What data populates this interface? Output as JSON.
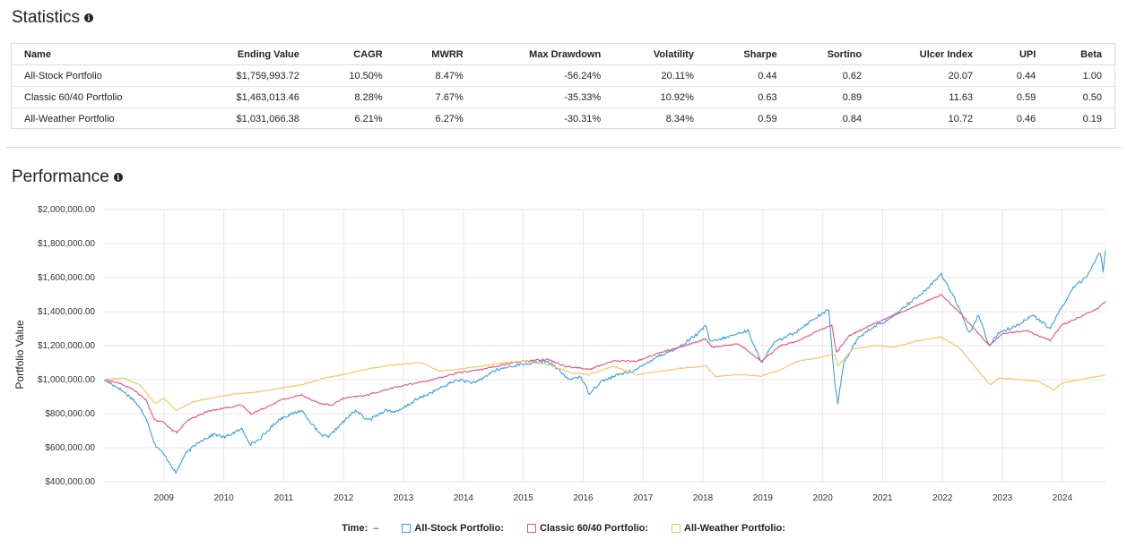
{
  "statistics": {
    "title": "Statistics",
    "columns": [
      "Name",
      "Ending Value",
      "CAGR",
      "MWRR",
      "Max Drawdown",
      "Volatility",
      "Sharpe",
      "Sortino",
      "Ulcer Index",
      "UPI",
      "Beta"
    ],
    "rows": [
      {
        "name": "All-Stock Portfolio",
        "ending_value": "$1,759,993.72",
        "cagr": "10.50%",
        "mwrr": "8.47%",
        "max_drawdown": "-56.24%",
        "volatility": "20.11%",
        "sharpe": "0.44",
        "sortino": "0.62",
        "ulcer_index": "20.07",
        "upi": "0.44",
        "beta": "1.00"
      },
      {
        "name": "Classic 60/40 Portfolio",
        "ending_value": "$1,463,013.46",
        "cagr": "8.28%",
        "mwrr": "7.67%",
        "max_drawdown": "-35.33%",
        "volatility": "10.92%",
        "sharpe": "0.63",
        "sortino": "0.89",
        "ulcer_index": "11.63",
        "upi": "0.59",
        "beta": "0.50"
      },
      {
        "name": "All-Weather Portfolio",
        "ending_value": "$1,031,066.38",
        "cagr": "6.21%",
        "mwrr": "6.27%",
        "max_drawdown": "-30.31%",
        "volatility": "8.34%",
        "sharpe": "0.59",
        "sortino": "0.84",
        "ulcer_index": "10.72",
        "upi": "0.46",
        "beta": "0.19"
      }
    ]
  },
  "performance": {
    "title": "Performance",
    "legend": {
      "time_label": "Time:",
      "time_value": "–"
    }
  },
  "chart_data": {
    "type": "line",
    "title": "Performance",
    "xlabel": "",
    "ylabel": "Portfolio Value",
    "xlim": [
      2008.0,
      2024.72
    ],
    "ylim": [
      400000,
      2000000
    ],
    "x_ticks": [
      2009,
      2010,
      2011,
      2012,
      2013,
      2014,
      2015,
      2016,
      2017,
      2018,
      2019,
      2020,
      2021,
      2022,
      2023,
      2024
    ],
    "y_ticks": [
      {
        "value": 400000,
        "label": "$400,000.00"
      },
      {
        "value": 600000,
        "label": "$600,000.00"
      },
      {
        "value": 800000,
        "label": "$800,000.00"
      },
      {
        "value": 1000000,
        "label": "$1,000,000.00"
      },
      {
        "value": 1200000,
        "label": "$1,200,000.00"
      },
      {
        "value": 1400000,
        "label": "$1,400,000.00"
      },
      {
        "value": 1600000,
        "label": "$1,600,000.00"
      },
      {
        "value": 1800000,
        "label": "$1,800,000.00"
      },
      {
        "value": 2000000,
        "label": "$2,000,000.00"
      }
    ],
    "grid": true,
    "legend_position": "bottom",
    "series": [
      {
        "name": "All-Stock Portfolio",
        "legend_label": "All-Stock Portfolio:",
        "color": "#3a9fdf",
        "points": [
          [
            2008.0,
            1000000
          ],
          [
            2008.25,
            950000
          ],
          [
            2008.5,
            880000
          ],
          [
            2008.7,
            780000
          ],
          [
            2008.85,
            620000
          ],
          [
            2009.0,
            560000
          ],
          [
            2009.12,
            500000
          ],
          [
            2009.2,
            450000
          ],
          [
            2009.35,
            560000
          ],
          [
            2009.6,
            640000
          ],
          [
            2009.85,
            680000
          ],
          [
            2010.0,
            660000
          ],
          [
            2010.3,
            710000
          ],
          [
            2010.45,
            620000
          ],
          [
            2010.6,
            650000
          ],
          [
            2010.9,
            760000
          ],
          [
            2011.0,
            780000
          ],
          [
            2011.3,
            820000
          ],
          [
            2011.6,
            680000
          ],
          [
            2011.75,
            660000
          ],
          [
            2011.9,
            720000
          ],
          [
            2012.2,
            820000
          ],
          [
            2012.4,
            760000
          ],
          [
            2012.7,
            820000
          ],
          [
            2012.9,
            810000
          ],
          [
            2013.2,
            880000
          ],
          [
            2013.5,
            930000
          ],
          [
            2013.9,
            1000000
          ],
          [
            2014.2,
            980000
          ],
          [
            2014.5,
            1050000
          ],
          [
            2014.8,
            1080000
          ],
          [
            2015.0,
            1090000
          ],
          [
            2015.4,
            1110000
          ],
          [
            2015.62,
            1050000
          ],
          [
            2015.75,
            1000000
          ],
          [
            2015.95,
            1020000
          ],
          [
            2016.1,
            920000
          ],
          [
            2016.3,
            990000
          ],
          [
            2016.6,
            1030000
          ],
          [
            2016.9,
            1060000
          ],
          [
            2017.2,
            1130000
          ],
          [
            2017.6,
            1190000
          ],
          [
            2017.95,
            1280000
          ],
          [
            2018.05,
            1320000
          ],
          [
            2018.12,
            1220000
          ],
          [
            2018.5,
            1260000
          ],
          [
            2018.75,
            1290000
          ],
          [
            2018.97,
            1100000
          ],
          [
            2019.2,
            1220000
          ],
          [
            2019.5,
            1270000
          ],
          [
            2019.9,
            1370000
          ],
          [
            2020.1,
            1410000
          ],
          [
            2020.2,
            980000
          ],
          [
            2020.25,
            860000
          ],
          [
            2020.35,
            1100000
          ],
          [
            2020.6,
            1250000
          ],
          [
            2020.9,
            1320000
          ],
          [
            2021.1,
            1350000
          ],
          [
            2021.4,
            1440000
          ],
          [
            2021.7,
            1520000
          ],
          [
            2021.98,
            1620000
          ],
          [
            2022.2,
            1480000
          ],
          [
            2022.45,
            1270000
          ],
          [
            2022.6,
            1380000
          ],
          [
            2022.78,
            1200000
          ],
          [
            2022.95,
            1280000
          ],
          [
            2023.2,
            1310000
          ],
          [
            2023.5,
            1380000
          ],
          [
            2023.8,
            1300000
          ],
          [
            2023.98,
            1420000
          ],
          [
            2024.2,
            1550000
          ],
          [
            2024.4,
            1600000
          ],
          [
            2024.55,
            1700000
          ],
          [
            2024.63,
            1750000
          ],
          [
            2024.68,
            1640000
          ],
          [
            2024.72,
            1760000
          ]
        ]
      },
      {
        "name": "Classic 60/40 Portfolio",
        "legend_label": "Classic 60/40 Portfolio:",
        "color": "#e8527a",
        "points": [
          [
            2008.0,
            1000000
          ],
          [
            2008.25,
            980000
          ],
          [
            2008.5,
            940000
          ],
          [
            2008.7,
            880000
          ],
          [
            2008.85,
            760000
          ],
          [
            2009.0,
            750000
          ],
          [
            2009.15,
            700000
          ],
          [
            2009.22,
            690000
          ],
          [
            2009.4,
            760000
          ],
          [
            2009.7,
            810000
          ],
          [
            2009.95,
            830000
          ],
          [
            2010.3,
            850000
          ],
          [
            2010.45,
            800000
          ],
          [
            2010.6,
            820000
          ],
          [
            2010.95,
            880000
          ],
          [
            2011.3,
            910000
          ],
          [
            2011.6,
            860000
          ],
          [
            2011.8,
            850000
          ],
          [
            2012.0,
            890000
          ],
          [
            2012.4,
            910000
          ],
          [
            2012.8,
            950000
          ],
          [
            2013.2,
            980000
          ],
          [
            2013.5,
            1000000
          ],
          [
            2013.9,
            1040000
          ],
          [
            2014.3,
            1060000
          ],
          [
            2014.7,
            1090000
          ],
          [
            2015.0,
            1110000
          ],
          [
            2015.4,
            1120000
          ],
          [
            2015.7,
            1080000
          ],
          [
            2016.1,
            1060000
          ],
          [
            2016.5,
            1110000
          ],
          [
            2016.9,
            1110000
          ],
          [
            2017.3,
            1160000
          ],
          [
            2017.7,
            1200000
          ],
          [
            2018.05,
            1240000
          ],
          [
            2018.15,
            1190000
          ],
          [
            2018.6,
            1210000
          ],
          [
            2018.97,
            1110000
          ],
          [
            2019.3,
            1200000
          ],
          [
            2019.6,
            1230000
          ],
          [
            2019.95,
            1290000
          ],
          [
            2020.15,
            1320000
          ],
          [
            2020.23,
            1160000
          ],
          [
            2020.45,
            1260000
          ],
          [
            2020.8,
            1320000
          ],
          [
            2021.2,
            1380000
          ],
          [
            2021.6,
            1440000
          ],
          [
            2021.98,
            1500000
          ],
          [
            2022.3,
            1390000
          ],
          [
            2022.5,
            1310000
          ],
          [
            2022.78,
            1200000
          ],
          [
            2023.0,
            1270000
          ],
          [
            2023.4,
            1290000
          ],
          [
            2023.8,
            1230000
          ],
          [
            2023.98,
            1320000
          ],
          [
            2024.3,
            1370000
          ],
          [
            2024.6,
            1420000
          ],
          [
            2024.72,
            1460000
          ]
        ]
      },
      {
        "name": "All-Weather Portfolio",
        "legend_label": "All-Weather Portfolio:",
        "color": "#f5c35a",
        "points": [
          [
            2008.0,
            1000000
          ],
          [
            2008.3,
            1010000
          ],
          [
            2008.6,
            970000
          ],
          [
            2008.85,
            860000
          ],
          [
            2009.0,
            890000
          ],
          [
            2009.2,
            820000
          ],
          [
            2009.5,
            870000
          ],
          [
            2009.9,
            900000
          ],
          [
            2010.3,
            920000
          ],
          [
            2010.6,
            930000
          ],
          [
            2010.95,
            950000
          ],
          [
            2011.3,
            970000
          ],
          [
            2011.7,
            1010000
          ],
          [
            2012.0,
            1030000
          ],
          [
            2012.5,
            1070000
          ],
          [
            2012.9,
            1090000
          ],
          [
            2013.3,
            1100000
          ],
          [
            2013.6,
            1050000
          ],
          [
            2013.9,
            1060000
          ],
          [
            2014.3,
            1080000
          ],
          [
            2014.7,
            1100000
          ],
          [
            2015.0,
            1110000
          ],
          [
            2015.4,
            1090000
          ],
          [
            2015.8,
            1040000
          ],
          [
            2016.1,
            1030000
          ],
          [
            2016.5,
            1080000
          ],
          [
            2016.9,
            1030000
          ],
          [
            2017.3,
            1050000
          ],
          [
            2017.7,
            1070000
          ],
          [
            2018.05,
            1080000
          ],
          [
            2018.2,
            1020000
          ],
          [
            2018.6,
            1030000
          ],
          [
            2018.97,
            1020000
          ],
          [
            2019.3,
            1060000
          ],
          [
            2019.6,
            1110000
          ],
          [
            2019.95,
            1130000
          ],
          [
            2020.2,
            1150000
          ],
          [
            2020.25,
            1080000
          ],
          [
            2020.5,
            1180000
          ],
          [
            2020.9,
            1200000
          ],
          [
            2021.2,
            1190000
          ],
          [
            2021.6,
            1230000
          ],
          [
            2021.98,
            1250000
          ],
          [
            2022.3,
            1180000
          ],
          [
            2022.6,
            1050000
          ],
          [
            2022.8,
            970000
          ],
          [
            2022.95,
            1010000
          ],
          [
            2023.3,
            1000000
          ],
          [
            2023.6,
            990000
          ],
          [
            2023.85,
            940000
          ],
          [
            2024.0,
            980000
          ],
          [
            2024.3,
            1000000
          ],
          [
            2024.6,
            1020000
          ],
          [
            2024.72,
            1030000
          ]
        ]
      }
    ]
  }
}
